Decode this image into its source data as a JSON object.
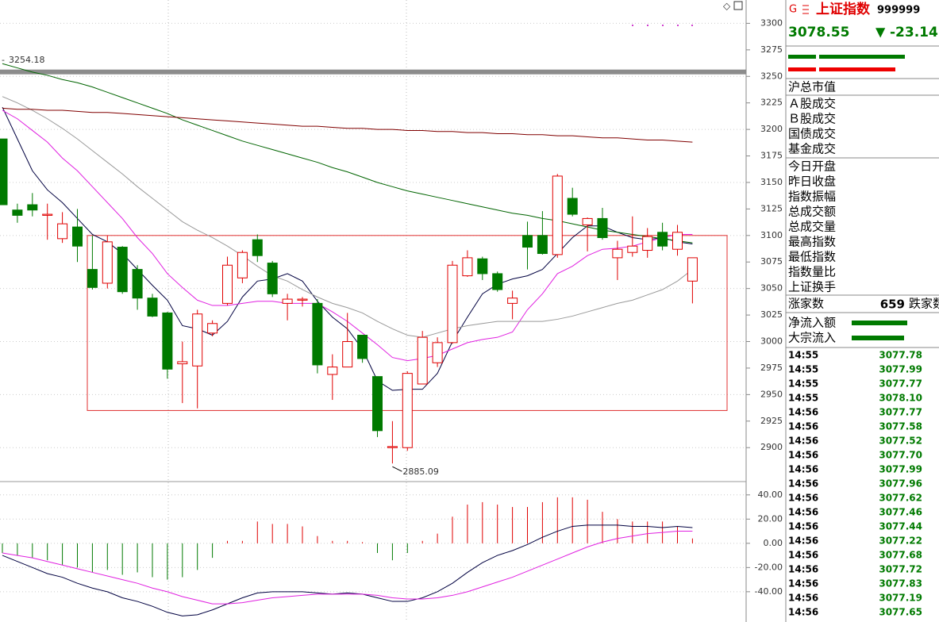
{
  "chart_data": [
    {
      "type": "candlestick",
      "up_color": "#e00000",
      "down_color": "#007a00",
      "open": [
        3191,
        3124,
        3129,
        3119,
        3097,
        3108,
        3068,
        3055,
        3089,
        3068,
        3041,
        3027,
        2979,
        2977,
        3008,
        3036,
        3060,
        3096,
        3074,
        3036,
        3039,
        3036,
        2969,
        2976,
        3006,
        2967,
        2900,
        2900,
        2960,
        2980,
        2999,
        3062,
        3078,
        3064,
        3036,
        3100,
        3100,
        3082,
        3135,
        3110,
        3116,
        3079,
        3084,
        3086,
        3103,
        3087,
        3057
      ],
      "high": [
        3191,
        3130,
        3140,
        3130,
        3122,
        3125,
        3100,
        3100,
        3090,
        3072,
        3045,
        3028,
        3000,
        3030,
        3020,
        3080,
        3086,
        3101,
        3076,
        3045,
        3042,
        3040,
        2988,
        3027,
        3006,
        2967,
        2925,
        2972,
        3010,
        3004,
        3076,
        3086,
        3080,
        3066,
        3048,
        3113,
        3123,
        3158,
        3145,
        3117,
        3126,
        3095,
        3118,
        3107,
        3112,
        3110,
        3079
      ],
      "low": [
        3129,
        3112,
        3118,
        3096,
        3093,
        3075,
        3049,
        3050,
        3045,
        3030,
        3023,
        2965,
        2942,
        2937,
        3005,
        3034,
        3055,
        3075,
        3042,
        3020,
        3033,
        2970,
        2945,
        2976,
        2980,
        2910,
        2885.09,
        2897,
        2960,
        2976,
        2998,
        3061,
        3058,
        3047,
        3021,
        3068,
        3082,
        3079,
        3118,
        3085,
        3096,
        3058,
        3080,
        3079,
        3086,
        3081,
        3036
      ],
      "close": [
        3129,
        3119,
        3124,
        3120,
        3111,
        3090,
        3051,
        3094,
        3047,
        3041,
        3024,
        2974,
        2981,
        3026,
        3017,
        3072,
        3084,
        3081,
        3045,
        3040,
        3040,
        2978,
        2976,
        3000,
        2984,
        2916,
        2901,
        2970,
        3004,
        2999,
        3072,
        3079,
        3064,
        3049,
        3041,
        3089,
        3083,
        3156,
        3120,
        3116,
        3098,
        3087,
        3090,
        3099,
        3090,
        3103,
        3079
      ],
      "series": [
        {
          "color": "#000040",
          "values": [
            3221,
            3191,
            3161,
            3143,
            3131,
            3116,
            3101,
            3094,
            3083,
            3068,
            3053,
            3039,
            3015,
            3012,
            3006,
            3019,
            3042,
            3057,
            3059,
            3064,
            3057,
            3038,
            3023,
            3012,
            2993,
            2963,
            2954,
            2955,
            2955,
            2970,
            3000,
            3023,
            3045,
            3054,
            3059,
            3062,
            3068,
            3083,
            3098,
            3109,
            3109,
            3103,
            3098,
            3096,
            3098,
            3094,
            3092
          ]
        },
        {
          "color": "#e020e0",
          "values": [
            3218,
            3210,
            3199,
            3188,
            3173,
            3161,
            3146,
            3131,
            3116,
            3098,
            3083,
            3064,
            3051,
            3039,
            3034,
            3034,
            3036,
            3038,
            3038,
            3036,
            3036,
            3036,
            3028,
            3019,
            3008,
            2997,
            2985,
            2982,
            2984,
            2987,
            2993,
            2999,
            3002,
            3004,
            3009,
            3030,
            3045,
            3064,
            3071,
            3081,
            3087,
            3088,
            3090,
            3094,
            3098,
            3101,
            3101
          ]
        },
        {
          "color": "#999999",
          "values": [
            3231,
            3225,
            3218,
            3210,
            3201,
            3191,
            3180,
            3169,
            3158,
            3146,
            3135,
            3124,
            3113,
            3105,
            3098,
            3090,
            3081,
            3071,
            3062,
            3057,
            3049,
            3042,
            3036,
            3032,
            3027,
            3019,
            3012,
            3006,
            3004,
            3008,
            3012,
            3015,
            3017,
            3019,
            3019,
            3019,
            3019,
            3021,
            3024,
            3028,
            3032,
            3036,
            3039,
            3044,
            3049,
            3057,
            3068
          ]
        },
        {
          "color": "#006400",
          "values": [
            3262,
            3258,
            3254,
            3251,
            3247,
            3244,
            3240,
            3235,
            3230,
            3225,
            3220,
            3215,
            3209,
            3204,
            3199,
            3194,
            3189,
            3185,
            3181,
            3177,
            3173,
            3169,
            3164,
            3160,
            3155,
            3150,
            3146,
            3142,
            3139,
            3136,
            3133,
            3130,
            3127,
            3124,
            3121,
            3119,
            3116,
            3114,
            3111,
            3108,
            3105,
            3103,
            3101,
            3099,
            3097,
            3095,
            3093
          ]
        },
        {
          "color": "#800000",
          "values": [
            3220,
            3219,
            3219,
            3218,
            3218,
            3217,
            3216,
            3216,
            3215,
            3214,
            3213,
            3212,
            3211,
            3210,
            3209,
            3208,
            3207,
            3206,
            3205,
            3204,
            3203,
            3203,
            3202,
            3201,
            3201,
            3200,
            3200,
            3199,
            3199,
            3198,
            3198,
            3197,
            3197,
            3196,
            3196,
            3195,
            3195,
            3194,
            3194,
            3193,
            3192,
            3192,
            3191,
            3190,
            3190,
            3189,
            3188
          ]
        }
      ],
      "reference_line": 3254.18,
      "box": [
        3100,
        2935
      ],
      "ylim": [
        2868,
        3322
      ],
      "yticks": [
        2900,
        2925,
        2950,
        2975,
        3000,
        3025,
        3050,
        3075,
        3100,
        3125,
        3150,
        3175,
        3200,
        3225,
        3250,
        3275,
        3300
      ]
    },
    {
      "type": "macd",
      "up_color": "#e00000",
      "down_color": "#007a00",
      "histogram": [
        -8,
        -10,
        -12,
        -14,
        -18,
        -20,
        -24,
        -22,
        -26,
        -24,
        -28,
        -30,
        -28,
        -22,
        -12,
        2,
        2,
        18,
        16,
        16,
        14,
        6,
        2,
        2,
        1,
        -8,
        -14,
        -8,
        2,
        8,
        22,
        32,
        34,
        32,
        30,
        30,
        34,
        38,
        38,
        36,
        26,
        20,
        18,
        18,
        18,
        14,
        4
      ],
      "series": [
        {
          "color": "#000040",
          "values": [
            -10,
            -15,
            -20,
            -25,
            -28,
            -33,
            -37,
            -40,
            -45,
            -48,
            -52,
            -57,
            -60,
            -59,
            -55,
            -50,
            -45,
            -41,
            -40,
            -40,
            -40,
            -41,
            -42,
            -41,
            -42,
            -45,
            -48,
            -48,
            -45,
            -40,
            -33,
            -24,
            -16,
            -10,
            -6,
            -1,
            5,
            10,
            14,
            15,
            15,
            15,
            14,
            14,
            13,
            14,
            13
          ]
        },
        {
          "color": "#e020e0",
          "values": [
            -8,
            -10,
            -12,
            -15,
            -18,
            -21,
            -24,
            -27,
            -30,
            -33,
            -37,
            -40,
            -44,
            -47,
            -50,
            -50,
            -49,
            -47,
            -45,
            -44,
            -43,
            -42,
            -42,
            -42,
            -42,
            -43,
            -45,
            -46,
            -46,
            -45,
            -43,
            -40,
            -36,
            -32,
            -28,
            -23,
            -18,
            -13,
            -8,
            -3,
            1,
            4,
            6,
            8,
            9,
            10,
            10
          ]
        }
      ],
      "ylim": [
        -65,
        51
      ],
      "yticks": [
        {
          "value": 40,
          "label": "40.00"
        },
        {
          "value": 20,
          "label": "20.00"
        },
        {
          "value": 0,
          "label": "0.00"
        },
        {
          "value": -20,
          "label": "-20.00"
        },
        {
          "value": -40,
          "label": "-40.00"
        }
      ]
    }
  ],
  "panel": {
    "marker": "G",
    "name": "上证指数",
    "code": "999999",
    "price": "3078.55",
    "change": "-23.14",
    "stats": [
      "沪总市值",
      "Ａ股成交",
      "Ｂ股成交",
      "国债成交",
      "基金成交",
      "今日开盘",
      "昨日收盘",
      "指数振幅",
      "总成交额",
      "总成交量",
      "最高指数",
      "最低指数",
      "指数量比",
      "上证换手"
    ],
    "breadth": {
      "rise_label": "涨家数",
      "rise": "659",
      "fall_label": "跌家数"
    },
    "flows": [
      "净流入额",
      "大宗流入"
    ],
    "ticks": [
      {
        "time": "14:55",
        "price": "3077.78"
      },
      {
        "time": "14:55",
        "price": "3077.99"
      },
      {
        "time": "14:55",
        "price": "3077.77"
      },
      {
        "time": "14:55",
        "price": "3078.10"
      },
      {
        "time": "14:56",
        "price": "3077.77"
      },
      {
        "time": "14:56",
        "price": "3077.58"
      },
      {
        "time": "14:56",
        "price": "3077.52"
      },
      {
        "time": "14:56",
        "price": "3077.70"
      },
      {
        "time": "14:56",
        "price": "3077.99"
      },
      {
        "time": "14:56",
        "price": "3077.96"
      },
      {
        "time": "14:56",
        "price": "3077.62"
      },
      {
        "time": "14:56",
        "price": "3077.46"
      },
      {
        "time": "14:56",
        "price": "3077.44"
      },
      {
        "time": "14:56",
        "price": "3077.22"
      },
      {
        "time": "14:56",
        "price": "3077.68"
      },
      {
        "time": "14:56",
        "price": "3077.72"
      },
      {
        "time": "14:56",
        "price": "3077.83"
      },
      {
        "time": "14:56",
        "price": "3077.19"
      },
      {
        "time": "14:56",
        "price": "3077.65"
      }
    ]
  }
}
